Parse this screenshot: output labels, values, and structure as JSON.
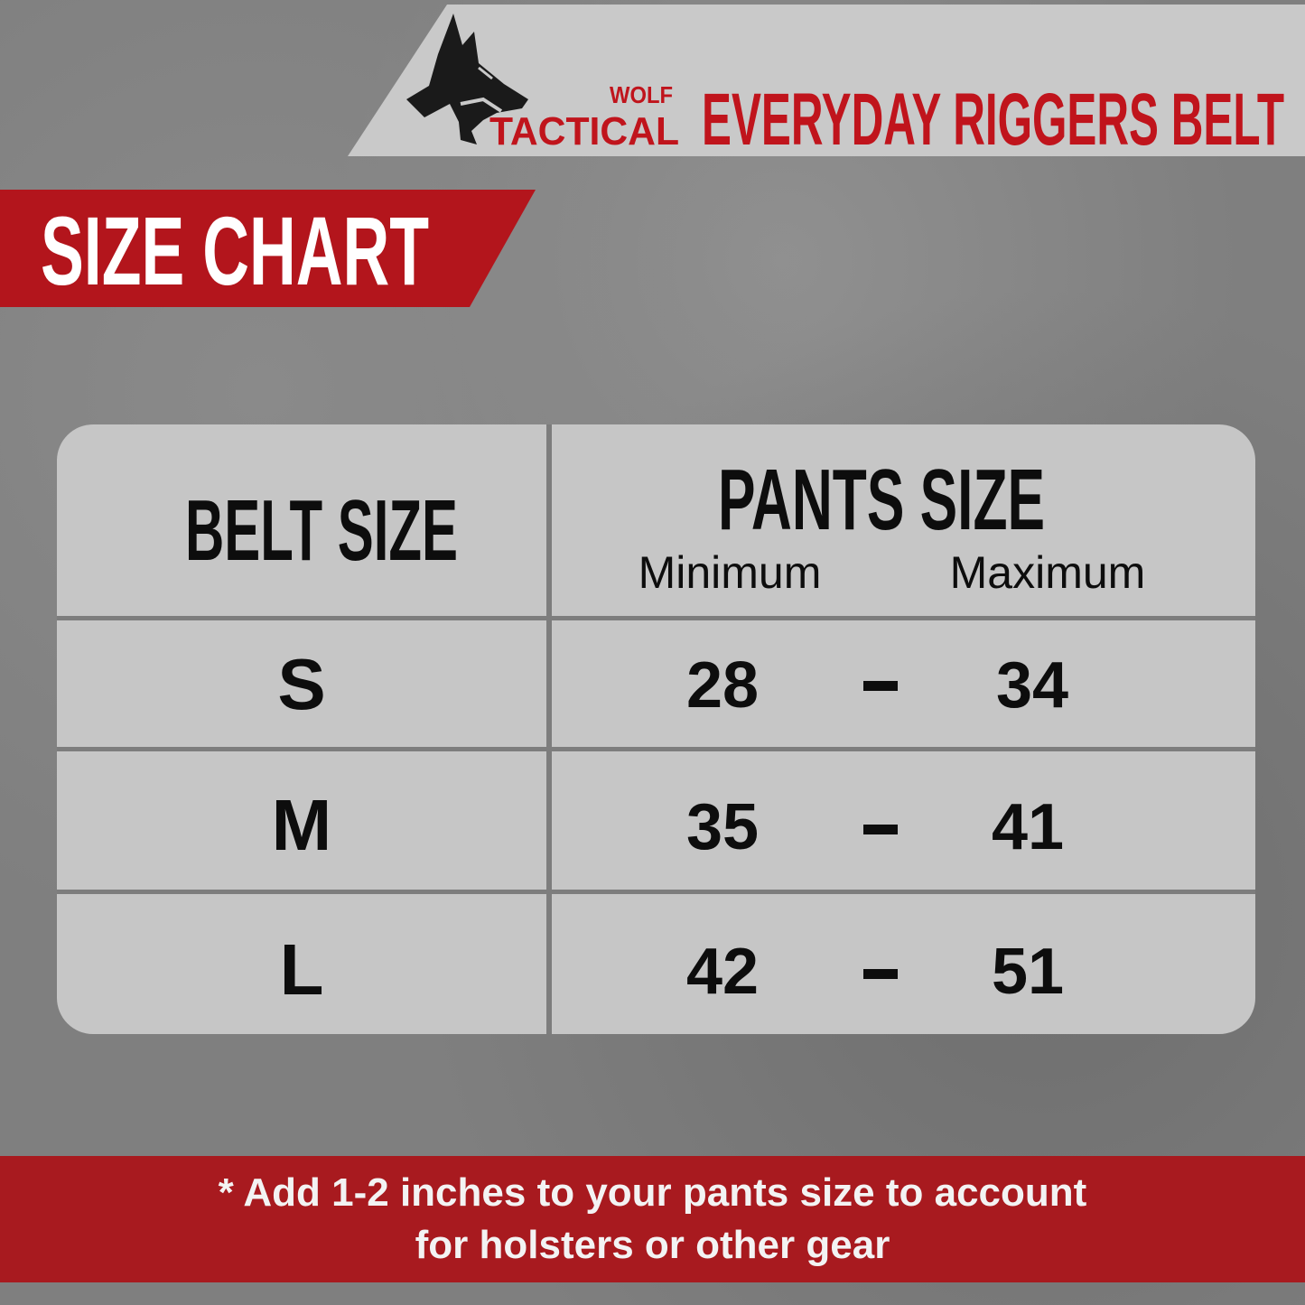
{
  "header": {
    "brand_top": "WOLF",
    "brand_bottom": "TACTICAL",
    "product_title": "EVERYDAY RIGGERS BELT",
    "logo_icon": "wolf-head-icon"
  },
  "banner": {
    "label": "SIZE CHART"
  },
  "table": {
    "belt_header": "BELT SIZE",
    "pants_header": "PANTS SIZE",
    "min_label": "Minimum",
    "max_label": "Maximum",
    "rows": [
      {
        "belt": "S",
        "min": "28",
        "max": "34"
      },
      {
        "belt": "M",
        "min": "35",
        "max": "41"
      },
      {
        "belt": "L",
        "min": "42",
        "max": "51"
      }
    ]
  },
  "footer": {
    "line1": "* Add 1-2 inches to your pants size to account",
    "line2": "for holsters or other gear"
  },
  "colors": {
    "accent_red": "#b3151c",
    "panel_gray": "#c6c6c6",
    "background": "#7f7f7f"
  }
}
